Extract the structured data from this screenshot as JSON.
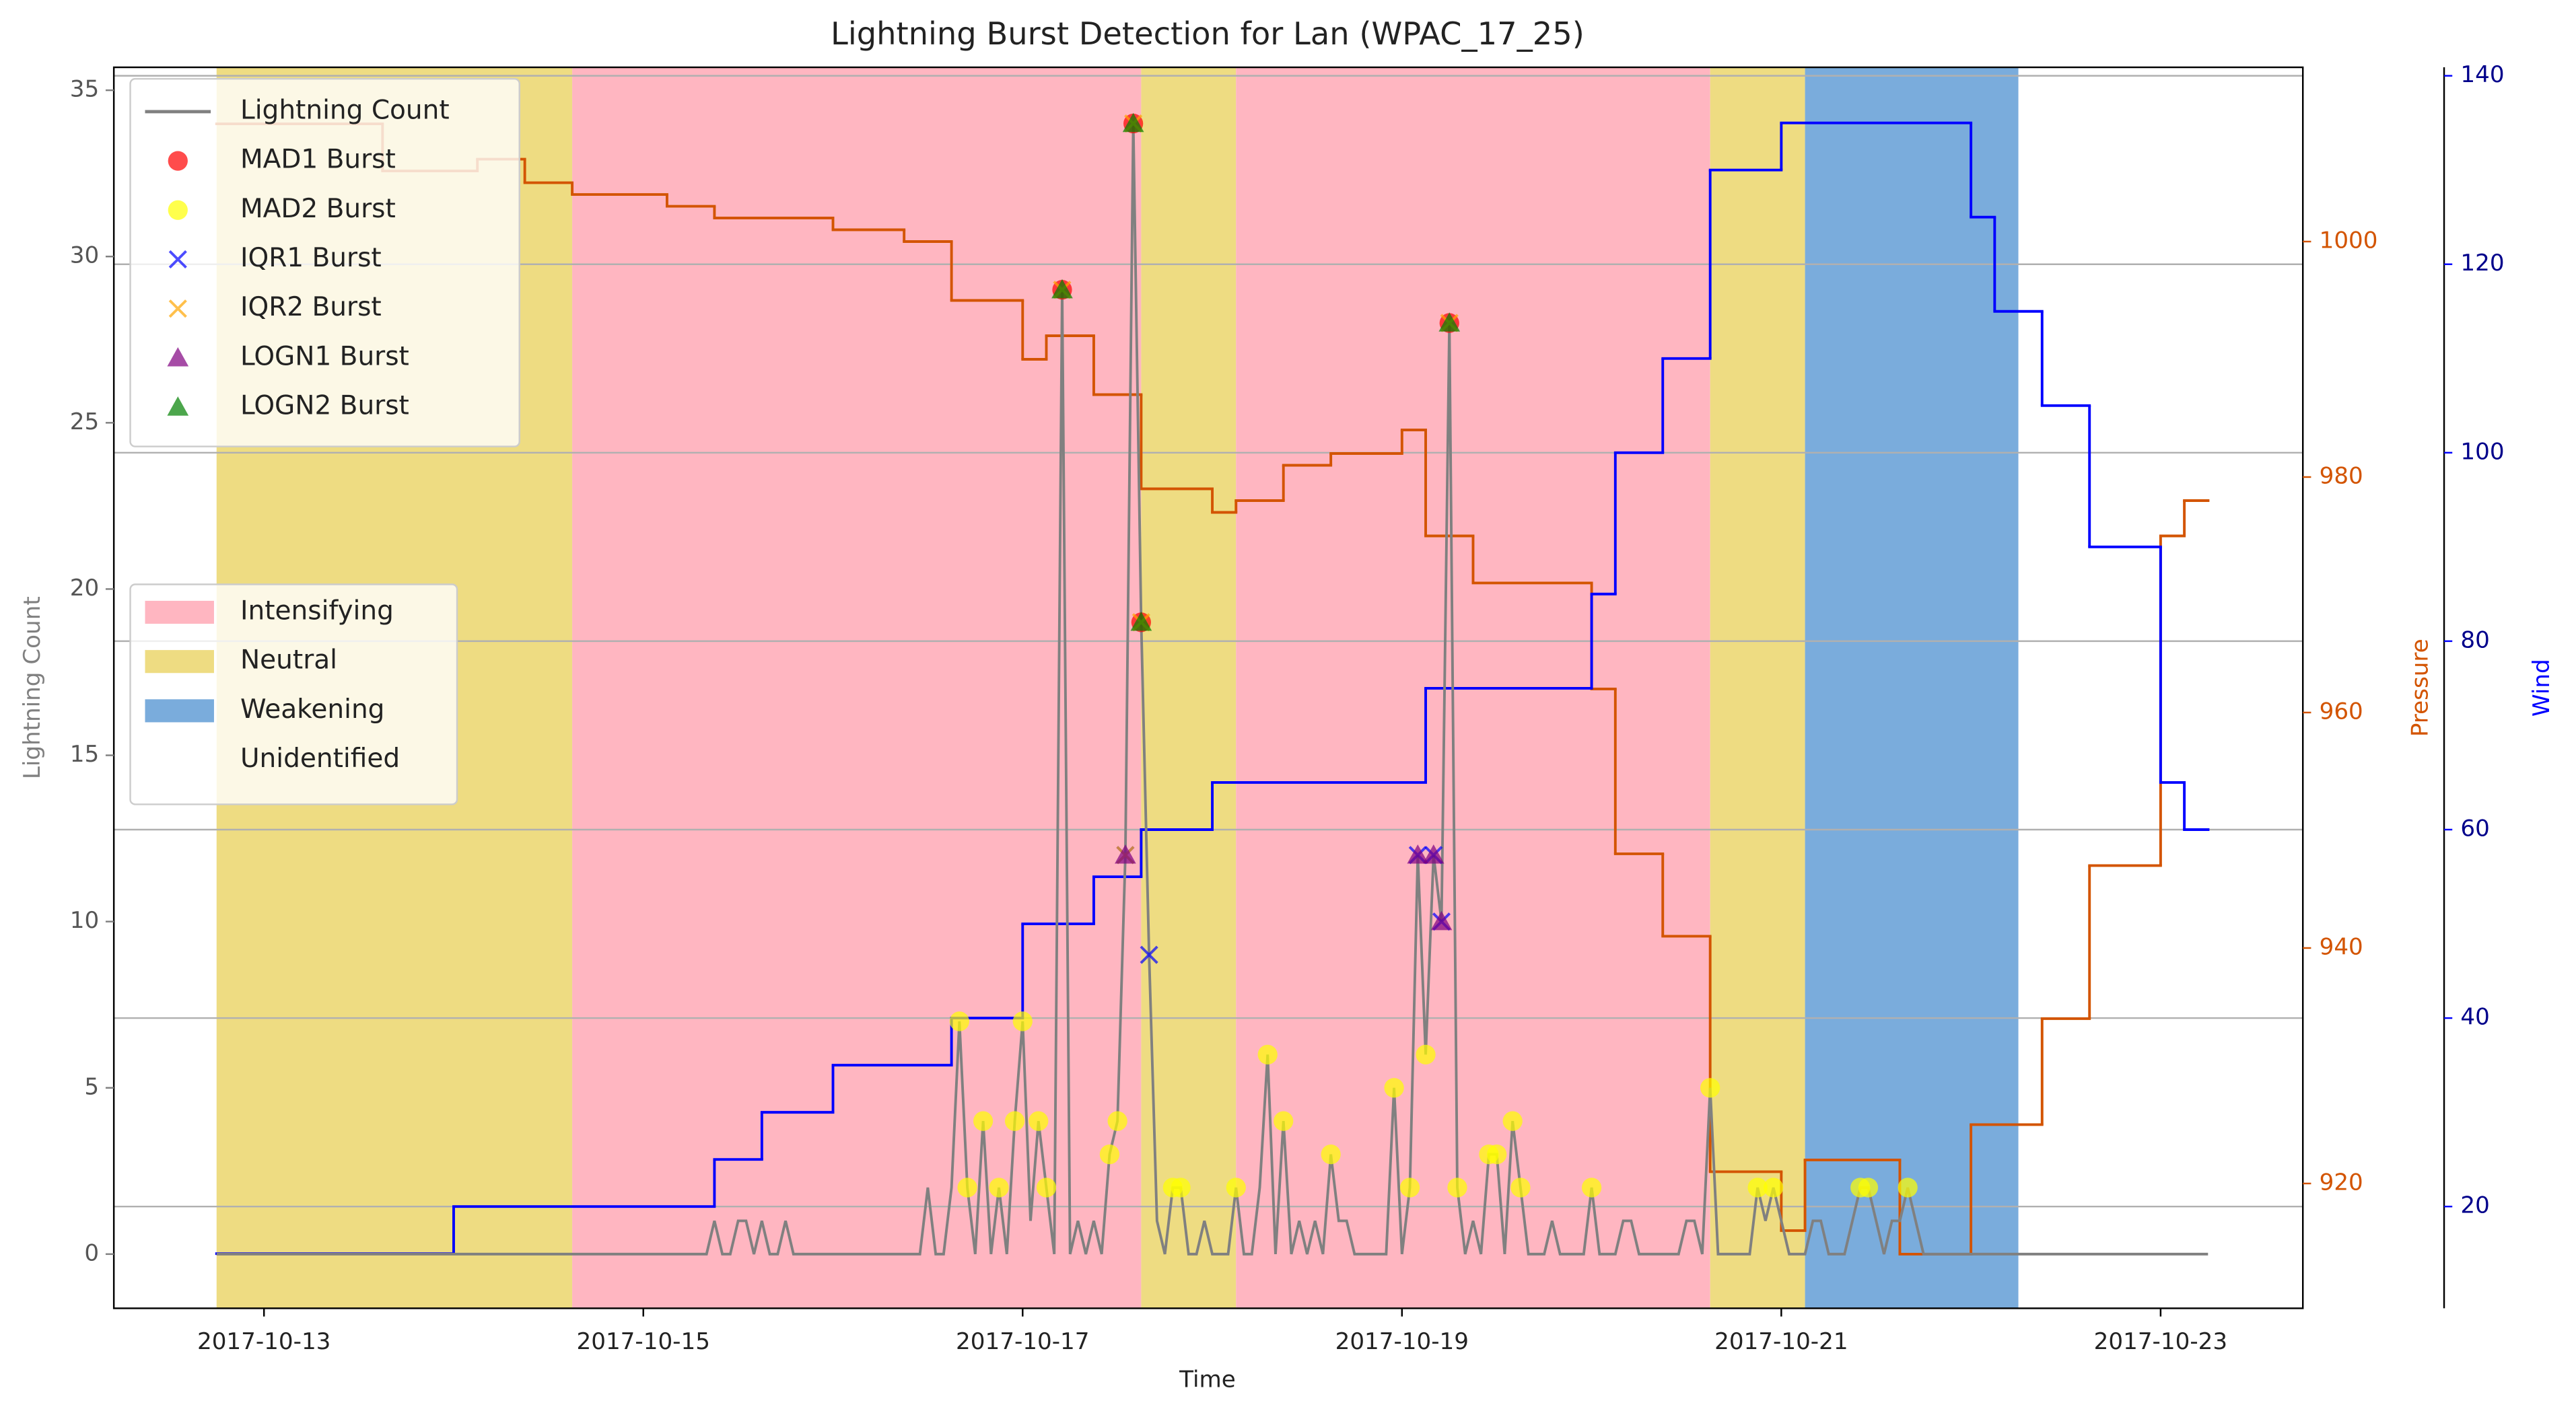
{
  "chart_data": {
    "type": "line",
    "title": "Lightning Burst Detection for Lan (WPAC_17_25)",
    "xlabel": "Time",
    "ylabel": "Lightning Count",
    "y2label": "Pressure",
    "y3label": "Wind",
    "xlim": [
      "2017-10-12 05:00",
      "2017-10-23 18:00"
    ],
    "xticks": [
      "2017-10-13",
      "2017-10-15",
      "2017-10-17",
      "2017-10-19",
      "2017-10-21",
      "2017-10-23"
    ],
    "ylim": [
      -1.63,
      35.69
    ],
    "yticks": [
      0,
      5,
      10,
      15,
      20,
      25,
      30,
      35
    ],
    "y2lim": [
      909.4,
      1014.8
    ],
    "y2ticks": [
      920,
      940,
      960,
      980,
      1000
    ],
    "y3lim": [
      9.2,
      140.9
    ],
    "y3ticks": [
      20,
      40,
      60,
      80,
      100,
      120,
      140
    ],
    "grid": "y3",
    "legend": "upper left",
    "phase_legend": "center left",
    "phases": [
      {
        "name": "Intensifying",
        "color": "#ffb6c1"
      },
      {
        "name": "Neutral",
        "color": "#eedc82"
      },
      {
        "name": "Weakening",
        "color": "#7aacdc"
      },
      {
        "name": "Unidentified",
        "color": "#ffffff"
      }
    ],
    "spans": [
      {
        "phase": "Neutral",
        "start": "2017-10-12 18:00",
        "end": "2017-10-14 15:00"
      },
      {
        "phase": "Intensifying",
        "start": "2017-10-14 15:00",
        "end": "2017-10-17 15:00"
      },
      {
        "phase": "Neutral",
        "start": "2017-10-17 15:00",
        "end": "2017-10-18 03:00"
      },
      {
        "phase": "Intensifying",
        "start": "2017-10-18 03:00",
        "end": "2017-10-20 15:00"
      },
      {
        "phase": "Neutral",
        "start": "2017-10-20 15:00",
        "end": "2017-10-21 03:00"
      },
      {
        "phase": "Weakening",
        "start": "2017-10-21 03:00",
        "end": "2017-10-22 06:00"
      }
    ],
    "series": [
      {
        "axis": "y2",
        "kind": "step",
        "color": "#d35400",
        "x": [
          "2017-10-12 18:00",
          "2017-10-13 15:00",
          "2017-10-14 03:00",
          "2017-10-14 09:00",
          "2017-10-14 15:00",
          "2017-10-15 03:00",
          "2017-10-15 09:00",
          "2017-10-16 00:00",
          "2017-10-16 09:00",
          "2017-10-16 15:00",
          "2017-10-17 00:00",
          "2017-10-17 03:00",
          "2017-10-17 09:00",
          "2017-10-17 15:00",
          "2017-10-18 00:00",
          "2017-10-18 03:00",
          "2017-10-18 09:00",
          "2017-10-18 15:00",
          "2017-10-19 00:00",
          "2017-10-19 03:00",
          "2017-10-19 09:00",
          "2017-10-20 00:00",
          "2017-10-20 03:00",
          "2017-10-20 09:00",
          "2017-10-20 15:00",
          "2017-10-21 00:00",
          "2017-10-21 03:00",
          "2017-10-21 15:00",
          "2017-10-22 00:00",
          "2017-10-22 09:00",
          "2017-10-22 15:00",
          "2017-10-23 00:00",
          "2017-10-23 03:00",
          "2017-10-23 06:00"
        ],
        "values": [
          1010,
          1006,
          1007,
          1005,
          1004,
          1003,
          1002,
          1001,
          1000,
          995,
          990,
          992,
          987,
          979,
          977,
          978,
          981,
          982,
          984,
          975,
          971,
          962,
          948,
          941,
          921,
          916,
          922,
          914,
          925,
          934,
          947,
          975,
          978,
          978
        ]
      },
      {
        "axis": "y3",
        "kind": "step",
        "color": "#0000ff",
        "x": [
          "2017-10-12 18:00",
          "2017-10-14 00:00",
          "2017-10-15 09:00",
          "2017-10-15 15:00",
          "2017-10-16 00:00",
          "2017-10-16 15:00",
          "2017-10-17 00:00",
          "2017-10-17 09:00",
          "2017-10-17 15:00",
          "2017-10-18 00:00",
          "2017-10-19 03:00",
          "2017-10-20 00:00",
          "2017-10-20 03:00",
          "2017-10-20 09:00",
          "2017-10-20 15:00",
          "2017-10-21 00:00",
          "2017-10-22 00:00",
          "2017-10-22 03:00",
          "2017-10-22 09:00",
          "2017-10-22 15:00",
          "2017-10-23 00:00",
          "2017-10-23 03:00",
          "2017-10-23 06:00"
        ],
        "values": [
          15,
          20,
          25,
          30,
          35,
          40,
          50,
          55,
          60,
          65,
          75,
          85,
          100,
          110,
          130,
          135,
          125,
          115,
          105,
          90,
          65,
          60,
          60
        ]
      },
      {
        "name": "Lightning Count",
        "axis": "y",
        "kind": "line",
        "color": "#808080",
        "x": [
          "2017-10-12 18:00",
          "2017-10-15 08:00",
          "2017-10-15 09:00",
          "2017-10-15 10:00",
          "2017-10-15 11:00",
          "2017-10-15 12:00",
          "2017-10-15 13:00",
          "2017-10-15 14:00",
          "2017-10-15 15:00",
          "2017-10-15 16:00",
          "2017-10-15 17:00",
          "2017-10-15 18:00",
          "2017-10-15 19:00",
          "2017-10-16 11:00",
          "2017-10-16 12:00",
          "2017-10-16 13:00",
          "2017-10-16 14:00",
          "2017-10-16 15:00",
          "2017-10-16 16:00",
          "2017-10-16 17:00",
          "2017-10-16 18:00",
          "2017-10-16 19:00",
          "2017-10-16 20:00",
          "2017-10-16 21:00",
          "2017-10-16 22:00",
          "2017-10-16 23:00",
          "2017-10-17 00:00",
          "2017-10-17 01:00",
          "2017-10-17 02:00",
          "2017-10-17 03:00",
          "2017-10-17 04:00",
          "2017-10-17 05:00",
          "2017-10-17 06:00",
          "2017-10-17 07:00",
          "2017-10-17 08:00",
          "2017-10-17 09:00",
          "2017-10-17 10:00",
          "2017-10-17 11:00",
          "2017-10-17 12:00",
          "2017-10-17 13:00",
          "2017-10-17 14:00",
          "2017-10-17 15:00",
          "2017-10-17 16:00",
          "2017-10-17 17:00",
          "2017-10-17 18:00",
          "2017-10-17 19:00",
          "2017-10-17 20:00",
          "2017-10-17 21:00",
          "2017-10-17 22:00",
          "2017-10-17 23:00",
          "2017-10-18 00:00",
          "2017-10-18 02:00",
          "2017-10-18 03:00",
          "2017-10-18 04:00",
          "2017-10-18 05:00",
          "2017-10-18 06:00",
          "2017-10-18 07:00",
          "2017-10-18 08:00",
          "2017-10-18 09:00",
          "2017-10-18 10:00",
          "2017-10-18 11:00",
          "2017-10-18 12:00",
          "2017-10-18 13:00",
          "2017-10-18 14:00",
          "2017-10-18 15:00",
          "2017-10-18 16:00",
          "2017-10-18 17:00",
          "2017-10-18 18:00",
          "2017-10-18 22:00",
          "2017-10-18 23:00",
          "2017-10-19 00:00",
          "2017-10-19 01:00",
          "2017-10-19 02:00",
          "2017-10-19 03:00",
          "2017-10-19 04:00",
          "2017-10-19 05:00",
          "2017-10-19 06:00",
          "2017-10-19 07:00",
          "2017-10-19 08:00",
          "2017-10-19 09:00",
          "2017-10-19 10:00",
          "2017-10-19 11:00",
          "2017-10-19 12:00",
          "2017-10-19 13:00",
          "2017-10-19 14:00",
          "2017-10-19 15:00",
          "2017-10-19 16:00",
          "2017-10-19 18:00",
          "2017-10-19 19:00",
          "2017-10-19 20:00",
          "2017-10-19 23:00",
          "2017-10-20 00:00",
          "2017-10-20 01:00",
          "2017-10-20 03:00",
          "2017-10-20 04:00",
          "2017-10-20 05:00",
          "2017-10-20 06:00",
          "2017-10-20 11:00",
          "2017-10-20 12:00",
          "2017-10-20 13:00",
          "2017-10-20 14:00",
          "2017-10-20 15:00",
          "2017-10-20 16:00",
          "2017-10-20 20:00",
          "2017-10-20 21:00",
          "2017-10-20 22:00",
          "2017-10-20 23:00",
          "2017-10-21 00:00",
          "2017-10-21 01:00",
          "2017-10-21 03:00",
          "2017-10-21 04:00",
          "2017-10-21 05:00",
          "2017-10-21 06:00",
          "2017-10-21 08:00",
          "2017-10-21 09:00",
          "2017-10-21 10:00",
          "2017-10-21 11:00",
          "2017-10-21 12:00",
          "2017-10-21 13:00",
          "2017-10-21 14:00",
          "2017-10-21 15:00",
          "2017-10-21 16:00",
          "2017-10-21 17:00",
          "2017-10-21 18:00",
          "2017-10-23 06:00"
        ],
        "values": [
          0,
          0,
          1,
          0,
          0,
          1,
          1,
          0,
          1,
          0,
          0,
          1,
          0,
          0,
          2,
          0,
          0,
          2,
          7,
          2,
          0,
          4,
          0,
          2,
          0,
          4,
          7,
          1,
          4,
          2,
          0,
          29,
          0,
          1,
          0,
          1,
          0,
          3,
          4,
          12,
          34,
          19,
          9,
          1,
          0,
          2,
          2,
          0,
          0,
          1,
          0,
          0,
          2,
          0,
          0,
          2,
          6,
          0,
          4,
          0,
          1,
          0,
          1,
          0,
          3,
          1,
          1,
          0,
          0,
          5,
          0,
          2,
          12,
          6,
          12,
          10,
          28,
          2,
          0,
          1,
          0,
          3,
          3,
          0,
          4,
          2,
          0,
          0,
          1,
          0,
          0,
          2,
          0,
          0,
          1,
          1,
          0,
          0,
          1,
          1,
          0,
          5,
          0,
          0,
          2,
          1,
          2,
          1,
          0,
          0,
          1,
          1,
          0,
          0,
          1,
          2,
          2,
          1,
          0,
          1,
          1,
          2,
          1,
          0,
          0
        ]
      },
      {
        "name": "MAD1 Burst",
        "axis": "y",
        "kind": "scatter",
        "marker": "o",
        "color": "#ff0000",
        "x": [
          "2017-10-17 05:00",
          "2017-10-17 14:00",
          "2017-10-17 15:00",
          "2017-10-19 06:00"
        ],
        "values": [
          29,
          34,
          19,
          28
        ]
      },
      {
        "name": "MAD2 Burst",
        "axis": "y",
        "kind": "scatter",
        "marker": "o",
        "color": "#ffff00",
        "x": [
          "2017-10-16 16:00",
          "2017-10-16 17:00",
          "2017-10-16 19:00",
          "2017-10-16 21:00",
          "2017-10-16 23:00",
          "2017-10-17 00:00",
          "2017-10-17 02:00",
          "2017-10-17 03:00",
          "2017-10-17 11:00",
          "2017-10-17 12:00",
          "2017-10-17 19:00",
          "2017-10-17 20:00",
          "2017-10-18 03:00",
          "2017-10-18 07:00",
          "2017-10-18 09:00",
          "2017-10-18 15:00",
          "2017-10-18 23:00",
          "2017-10-19 01:00",
          "2017-10-19 03:00",
          "2017-10-19 07:00",
          "2017-10-19 11:00",
          "2017-10-19 12:00",
          "2017-10-19 14:00",
          "2017-10-19 15:00",
          "2017-10-20 00:00",
          "2017-10-20 15:00",
          "2017-10-20 21:00",
          "2017-10-20 23:00",
          "2017-10-21 10:00",
          "2017-10-21 11:00",
          "2017-10-21 16:00"
        ],
        "values": [
          7,
          2,
          4,
          2,
          4,
          7,
          4,
          2,
          3,
          4,
          2,
          2,
          2,
          6,
          4,
          3,
          5,
          2,
          6,
          2,
          3,
          3,
          4,
          2,
          2,
          5,
          2,
          2,
          2,
          2,
          2
        ]
      },
      {
        "name": "IQR1 Burst",
        "axis": "y",
        "kind": "scatter",
        "marker": "x",
        "color": "#0000ff",
        "x": [
          "2017-10-17 13:00",
          "2017-10-17 16:00",
          "2017-10-19 02:00",
          "2017-10-19 04:00",
          "2017-10-19 05:00"
        ],
        "values": [
          12,
          9,
          12,
          12,
          10
        ]
      },
      {
        "name": "IQR2 Burst",
        "axis": "y",
        "kind": "scatter",
        "marker": "x",
        "color": "#ffa500",
        "x": [
          "2017-10-17 05:00",
          "2017-10-17 13:00",
          "2017-10-17 14:00",
          "2017-10-17 15:00",
          "2017-10-19 06:00"
        ],
        "values": [
          29,
          12,
          34,
          19,
          28
        ]
      },
      {
        "name": "LOGN1 Burst",
        "axis": "y",
        "kind": "scatter",
        "marker": "^",
        "color": "#800080",
        "x": [
          "2017-10-17 13:00",
          "2017-10-19 02:00",
          "2017-10-19 04:00",
          "2017-10-19 05:00"
        ],
        "values": [
          12,
          12,
          12,
          10
        ]
      },
      {
        "name": "LOGN2 Burst",
        "axis": "y",
        "kind": "scatter",
        "marker": "^",
        "color": "#008000",
        "x": [
          "2017-10-17 05:00",
          "2017-10-17 14:00",
          "2017-10-17 15:00",
          "2017-10-19 06:00"
        ],
        "values": [
          29,
          34,
          19,
          28
        ]
      }
    ],
    "alpha": 0.7
  }
}
